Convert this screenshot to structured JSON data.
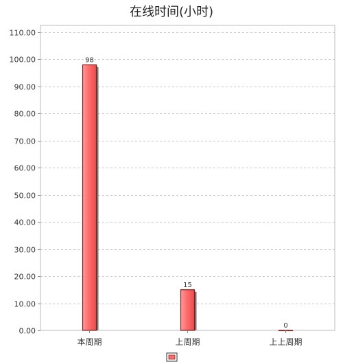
{
  "chart_data": {
    "type": "bar",
    "title": "在线时间(小时)",
    "categories": [
      "本周期",
      "上周期",
      "上上周期"
    ],
    "series": [
      {
        "values": [
          98,
          15,
          0
        ],
        "color": "#ff6b6b"
      }
    ],
    "data_labels": [
      "98",
      "15",
      "0"
    ],
    "ylim": [
      0,
      110
    ],
    "yticks": [
      0,
      10,
      20,
      30,
      40,
      50,
      60,
      70,
      80,
      90,
      100,
      110
    ],
    "ytick_labels": [
      "0.00",
      "10.00",
      "20.00",
      "30.00",
      "40.00",
      "50.00",
      "60.00",
      "70.00",
      "80.00",
      "90.00",
      "100.00",
      "110.00"
    ],
    "grid": true,
    "legend": "bottom-center"
  }
}
